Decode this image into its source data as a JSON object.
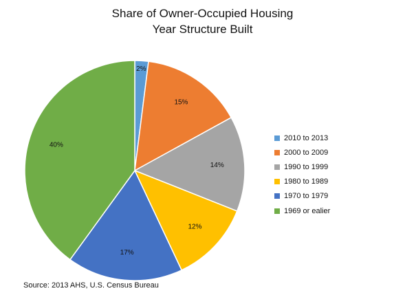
{
  "chart_data": {
    "type": "pie",
    "title_lines": [
      "Share of Owner-Occupied Housing",
      "Year Structure Built"
    ],
    "categories": [
      "2010 to 2013",
      "2000 to 2009",
      "1990 to 1999",
      "1980 to 1989",
      "1970 to 1979",
      "1969 or ealier"
    ],
    "values": [
      2,
      15,
      14,
      12,
      17,
      40
    ],
    "labels": [
      "2%",
      "15%",
      "14%",
      "12%",
      "17%",
      "40%"
    ],
    "colors": [
      "#5b9bd5",
      "#ed7d31",
      "#a5a5a5",
      "#ffc000",
      "#4472c4",
      "#70ad47"
    ],
    "legend_position": "right",
    "source": "Source:  2013 AHS, U.S. Census Bureau"
  }
}
